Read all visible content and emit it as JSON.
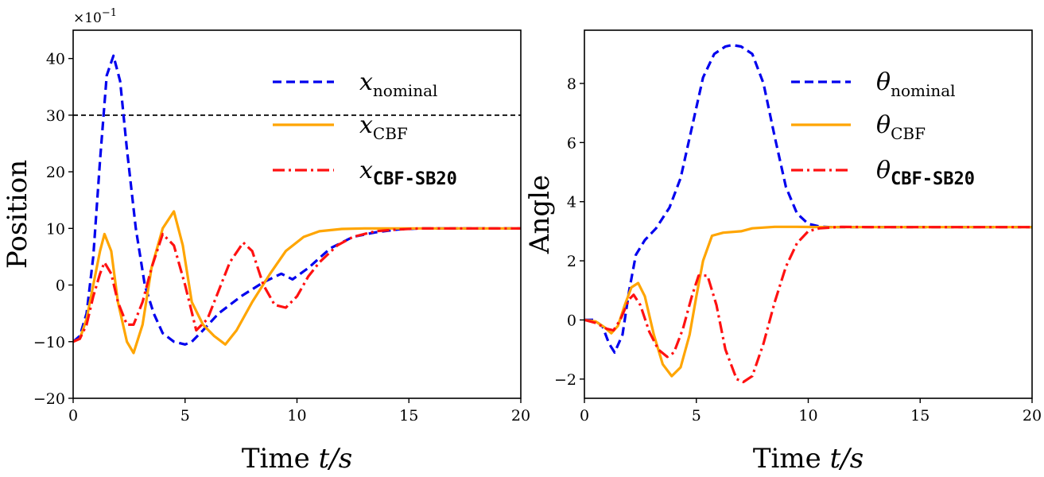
{
  "chart_data": [
    {
      "type": "line",
      "panel": "left",
      "xlabel_text": "Time ",
      "xlabel_var": "t/s",
      "ylabel": "Position",
      "offset_base": "×10",
      "offset_exp": "−1",
      "xlim": [
        0,
        20
      ],
      "ylim": [
        -20,
        45
      ],
      "xticks": [
        0,
        5,
        10,
        15,
        20
      ],
      "yticks": [
        -20,
        -10,
        0,
        10,
        20,
        30,
        40
      ],
      "xtick_labels": [
        "0",
        "5",
        "10",
        "15",
        "20"
      ],
      "ytick_labels": [
        "−20",
        "−10",
        "0",
        "10",
        "20",
        "30",
        "40"
      ],
      "hline": {
        "y": 30,
        "color": "#000000",
        "style": "dashed"
      },
      "legend_position": "top-right",
      "series": [
        {
          "name": "x_nominal",
          "symbol": "x",
          "subscript": "nominal",
          "sub_mono": false,
          "color": "#0000ee",
          "style": "dashed",
          "x": [
            0,
            0.3,
            0.6,
            0.9,
            1.2,
            1.5,
            1.8,
            2.1,
            2.4,
            2.8,
            3.2,
            3.6,
            4.0,
            4.5,
            5.0,
            5.3,
            5.8,
            6.5,
            7.5,
            8.5,
            9.3,
            9.8,
            10.5,
            11.5,
            12.5,
            13.5,
            14.5,
            15.5,
            17,
            20
          ],
          "y": [
            -10,
            -9,
            -5,
            5,
            22,
            37,
            40.5,
            36,
            24,
            10,
            0,
            -5,
            -8.5,
            -10,
            -10.5,
            -10,
            -8,
            -5,
            -2,
            0.5,
            2,
            1,
            3,
            6.5,
            8.5,
            9.3,
            9.8,
            10,
            10,
            10
          ]
        },
        {
          "name": "x_CBF",
          "symbol": "x",
          "subscript": "CBF",
          "sub_mono": false,
          "color": "#ffa500",
          "style": "solid",
          "x": [
            0,
            0.3,
            0.6,
            0.9,
            1.2,
            1.4,
            1.7,
            2.0,
            2.4,
            2.7,
            3.1,
            3.5,
            4.0,
            4.5,
            4.9,
            5.3,
            5.8,
            6.3,
            6.8,
            7.3,
            8.0,
            8.8,
            9.5,
            10.3,
            11.0,
            12.0,
            13.0,
            14.0,
            15.0,
            20
          ],
          "y": [
            -10,
            -9.5,
            -6,
            0,
            6,
            9,
            6,
            -3,
            -10,
            -12,
            -7,
            3,
            10,
            13,
            7,
            -3,
            -7,
            -9,
            -10.5,
            -8,
            -3,
            2,
            6,
            8.5,
            9.5,
            9.9,
            10,
            10,
            10,
            10
          ]
        },
        {
          "name": "x_CBF-SB20",
          "symbol": "x",
          "subscript": "CBF-SB20",
          "sub_mono": true,
          "color": "#ff1111",
          "style": "dashdot",
          "x": [
            0,
            0.3,
            0.6,
            0.9,
            1.2,
            1.4,
            1.7,
            2.0,
            2.4,
            2.7,
            3.1,
            3.5,
            4.0,
            4.5,
            5.0,
            5.5,
            6.0,
            6.5,
            7.0,
            7.6,
            8.0,
            8.5,
            9.0,
            9.5,
            10.0,
            10.5,
            11.0,
            11.8,
            12.5,
            13.5,
            14.5,
            15.5,
            20
          ],
          "y": [
            -10,
            -9.5,
            -7,
            -2,
            2,
            4,
            2,
            -3,
            -7,
            -7,
            -3,
            3,
            9,
            7,
            0,
            -8,
            -6,
            -1,
            4,
            7.5,
            6,
            0,
            -3.5,
            -4,
            -2,
            1.5,
            4,
            7,
            8.5,
            9.5,
            9.8,
            10,
            10
          ]
        }
      ]
    },
    {
      "type": "line",
      "panel": "right",
      "xlabel_text": "Time ",
      "xlabel_var": "t/s",
      "ylabel": "Angle",
      "xlim": [
        0,
        20
      ],
      "ylim": [
        -2.65,
        9.8
      ],
      "xticks": [
        0,
        5,
        10,
        15,
        20
      ],
      "yticks": [
        -2,
        0,
        2,
        4,
        6,
        8
      ],
      "xtick_labels": [
        "0",
        "5",
        "10",
        "15",
        "20"
      ],
      "ytick_labels": [
        "−2",
        "0",
        "2",
        "4",
        "6",
        "8"
      ],
      "legend_position": "top-right",
      "series": [
        {
          "name": "theta_nominal",
          "symbol": "θ",
          "subscript": "nominal",
          "sub_mono": false,
          "color": "#0000ee",
          "style": "dashed",
          "x": [
            0,
            0.4,
            0.8,
            1.1,
            1.35,
            1.7,
            2.0,
            2.3,
            2.7,
            3.2,
            3.8,
            4.3,
            4.8,
            5.3,
            5.8,
            6.3,
            6.6,
            7.0,
            7.5,
            8.0,
            8.5,
            9.0,
            9.5,
            10.0,
            10.5,
            11.0,
            12.0,
            20
          ],
          "y": [
            0,
            0,
            -0.2,
            -0.8,
            -1.1,
            -0.5,
            1.0,
            2.2,
            2.7,
            3.1,
            3.8,
            4.8,
            6.5,
            8.2,
            9.0,
            9.25,
            9.3,
            9.25,
            9.0,
            8.0,
            6.2,
            4.5,
            3.6,
            3.25,
            3.16,
            3.14,
            3.14,
            3.14
          ]
        },
        {
          "name": "theta_CBF",
          "symbol": "θ",
          "subscript": "CBF",
          "sub_mono": false,
          "color": "#ffa500",
          "style": "solid",
          "x": [
            0,
            0.5,
            0.9,
            1.2,
            1.5,
            1.8,
            2.1,
            2.4,
            2.7,
            3.1,
            3.5,
            3.9,
            4.3,
            4.7,
            5.0,
            5.3,
            5.7,
            6.2,
            7.0,
            7.5,
            8.5,
            9.5,
            10.5,
            20
          ],
          "y": [
            0,
            -0.05,
            -0.25,
            -0.45,
            -0.2,
            0.5,
            1.1,
            1.25,
            0.8,
            -0.5,
            -1.5,
            -1.9,
            -1.6,
            -0.5,
            0.8,
            2.0,
            2.85,
            2.95,
            3.0,
            3.1,
            3.15,
            3.15,
            3.14,
            3.14
          ]
        },
        {
          "name": "theta_CBF-SB20",
          "symbol": "θ",
          "subscript": "CBF-SB20",
          "sub_mono": true,
          "color": "#ff1111",
          "style": "dashdot",
          "x": [
            0,
            0.5,
            1.0,
            1.3,
            1.6,
            2.0,
            2.2,
            2.5,
            2.9,
            3.3,
            3.7,
            4.0,
            4.4,
            4.8,
            5.1,
            5.5,
            5.9,
            6.3,
            6.8,
            7.1,
            7.5,
            8.0,
            8.5,
            9.0,
            9.5,
            10.0,
            10.5,
            11.5,
            13.0,
            20
          ],
          "y": [
            0,
            -0.1,
            -0.3,
            -0.35,
            0.0,
            0.7,
            0.85,
            0.5,
            -0.4,
            -1.0,
            -1.25,
            -1.1,
            -0.3,
            0.8,
            1.5,
            1.5,
            0.5,
            -1.0,
            -2.0,
            -2.1,
            -1.9,
            -0.8,
            0.6,
            1.8,
            2.6,
            3.0,
            3.1,
            3.15,
            3.14,
            3.14
          ]
        }
      ]
    }
  ]
}
